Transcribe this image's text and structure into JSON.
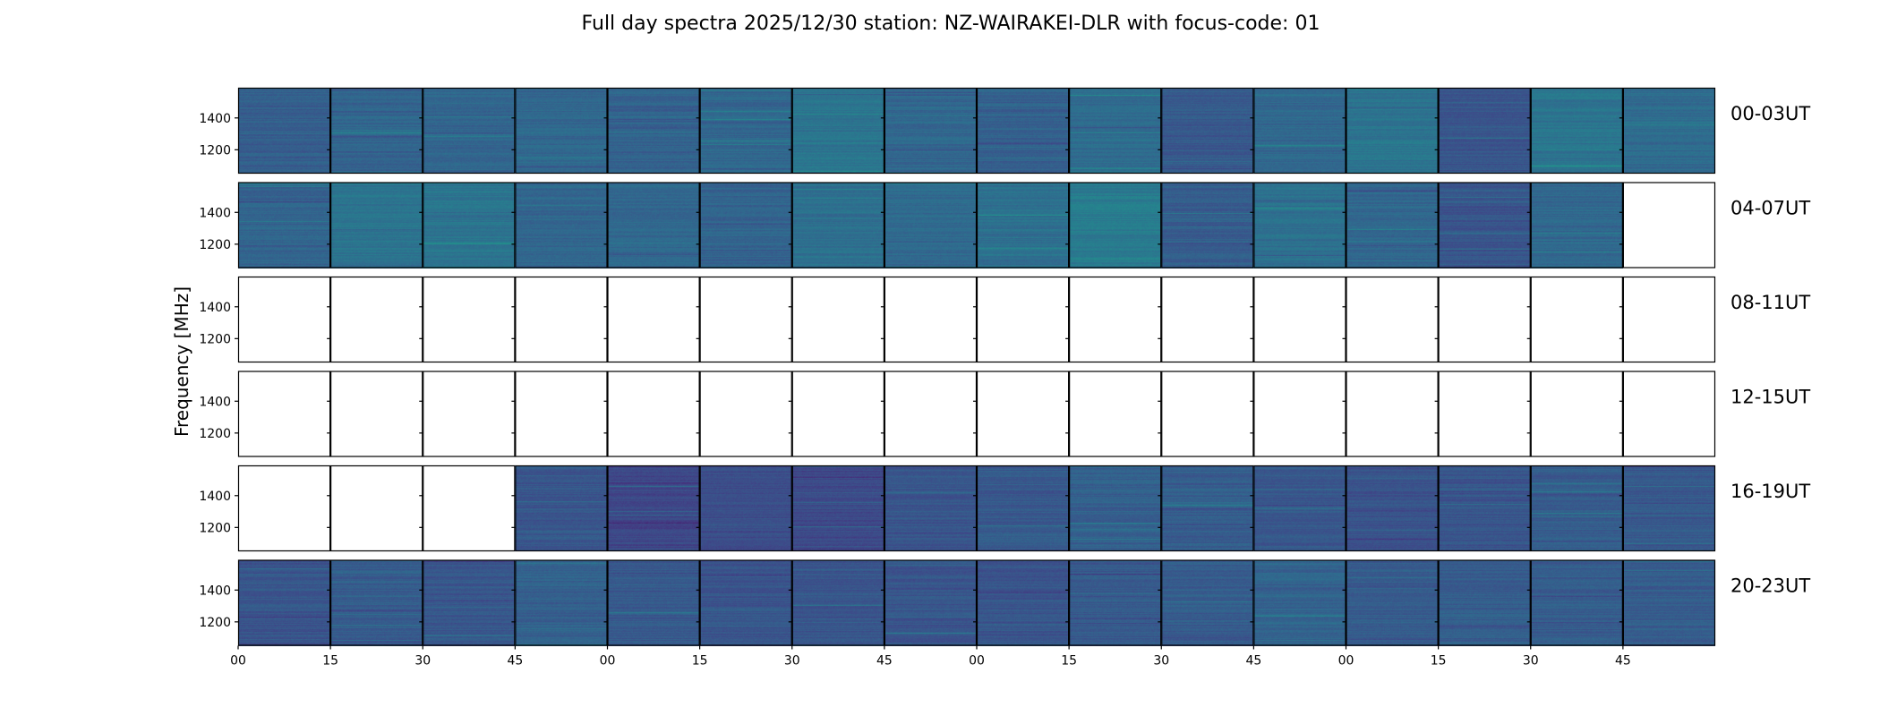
{
  "chart_data": {
    "type": "heatmap",
    "title": "Full day spectra 2025/12/30 station: NZ-WAIRAKEI-DLR with focus-code: 01",
    "ylabel": "Frequency [MHz]",
    "xlabel": "",
    "ylim": [
      1050,
      1590
    ],
    "y_ticks": [
      1200,
      1400
    ],
    "y_tick_labels": [
      "1200",
      "1400"
    ],
    "x_tick_labels": [
      "00",
      "15",
      "30",
      "45",
      "00",
      "15",
      "30",
      "45",
      "00",
      "15",
      "30",
      "45",
      "00",
      "15",
      "30",
      "45"
    ],
    "panels_per_row": 16,
    "minutes_per_panel": 15,
    "colormap": [
      "#440154",
      "#482878",
      "#3e4989",
      "#31688e",
      "#26828e",
      "#1f9e89",
      "#35b779"
    ],
    "grid": false,
    "rows": [
      {
        "label": "00-03UT",
        "data": [
          1,
          1,
          1,
          1,
          1,
          1,
          1,
          1,
          1,
          1,
          1,
          1,
          1,
          1,
          1,
          1
        ],
        "level": [
          0.45,
          0.48,
          0.5,
          0.5,
          0.47,
          0.5,
          0.58,
          0.5,
          0.46,
          0.52,
          0.42,
          0.5,
          0.58,
          0.4,
          0.58,
          0.52
        ]
      },
      {
        "label": "04-07UT",
        "data": [
          1,
          1,
          1,
          1,
          1,
          1,
          1,
          1,
          1,
          1,
          1,
          1,
          1,
          1,
          1,
          0
        ],
        "level": [
          0.48,
          0.58,
          0.58,
          0.5,
          0.5,
          0.48,
          0.55,
          0.52,
          0.55,
          0.62,
          0.45,
          0.55,
          0.5,
          0.4,
          0.5,
          0
        ]
      },
      {
        "label": "08-11UT",
        "data": [
          0,
          0,
          0,
          0,
          0,
          0,
          0,
          0,
          0,
          0,
          0,
          0,
          0,
          0,
          0,
          0
        ],
        "level": [
          0,
          0,
          0,
          0,
          0,
          0,
          0,
          0,
          0,
          0,
          0,
          0,
          0,
          0,
          0,
          0
        ]
      },
      {
        "label": "12-15UT",
        "data": [
          0,
          0,
          0,
          0,
          0,
          0,
          0,
          0,
          0,
          0,
          0,
          0,
          0,
          0,
          0,
          0
        ],
        "level": [
          0,
          0,
          0,
          0,
          0,
          0,
          0,
          0,
          0,
          0,
          0,
          0,
          0,
          0,
          0,
          0
        ]
      },
      {
        "label": "16-19UT",
        "data": [
          0,
          0,
          0,
          1,
          1,
          1,
          1,
          1,
          1,
          1,
          1,
          1,
          1,
          1,
          1,
          1
        ],
        "level": [
          0,
          0,
          0,
          0.4,
          0.32,
          0.36,
          0.34,
          0.4,
          0.42,
          0.46,
          0.44,
          0.42,
          0.38,
          0.4,
          0.44,
          0.42
        ]
      },
      {
        "label": "20-23UT",
        "data": [
          1,
          1,
          1,
          1,
          1,
          1,
          1,
          1,
          1,
          1,
          1,
          1,
          1,
          1,
          1,
          1
        ],
        "level": [
          0.4,
          0.44,
          0.4,
          0.46,
          0.42,
          0.4,
          0.4,
          0.4,
          0.4,
          0.42,
          0.44,
          0.48,
          0.44,
          0.44,
          0.44,
          0.44
        ]
      }
    ]
  }
}
